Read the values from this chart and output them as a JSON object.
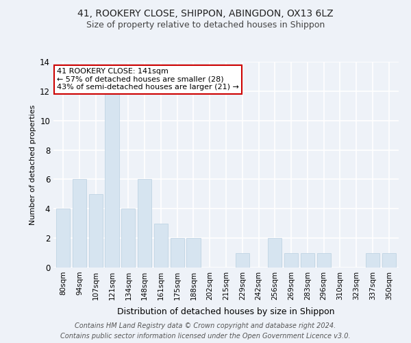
{
  "title1": "41, ROOKERY CLOSE, SHIPPON, ABINGDON, OX13 6LZ",
  "title2": "Size of property relative to detached houses in Shippon",
  "xlabel": "Distribution of detached houses by size in Shippon",
  "ylabel": "Number of detached properties",
  "categories": [
    "80sqm",
    "94sqm",
    "107sqm",
    "121sqm",
    "134sqm",
    "148sqm",
    "161sqm",
    "175sqm",
    "188sqm",
    "202sqm",
    "215sqm",
    "229sqm",
    "242sqm",
    "256sqm",
    "269sqm",
    "283sqm",
    "296sqm",
    "310sqm",
    "323sqm",
    "337sqm",
    "350sqm"
  ],
  "values": [
    4,
    6,
    5,
    12,
    4,
    6,
    3,
    2,
    2,
    0,
    0,
    1,
    0,
    2,
    1,
    1,
    1,
    0,
    0,
    1,
    1
  ],
  "bar_color": "#d6e4f0",
  "bar_edge_color": "#b8cfe0",
  "annotation_text": "41 ROOKERY CLOSE: 141sqm\n← 57% of detached houses are smaller (28)\n43% of semi-detached houses are larger (21) →",
  "annotation_box_color": "#ffffff",
  "annotation_box_edge": "#cc0000",
  "ylim": [
    0,
    14
  ],
  "yticks": [
    0,
    2,
    4,
    6,
    8,
    10,
    12,
    14
  ],
  "footer1": "Contains HM Land Registry data © Crown copyright and database right 2024.",
  "footer2": "Contains public sector information licensed under the Open Government Licence v3.0.",
  "bg_color": "#eef2f8",
  "grid_color": "#ffffff",
  "title1_fontsize": 10,
  "title2_fontsize": 9,
  "annotation_fontsize": 8,
  "footer_fontsize": 7
}
